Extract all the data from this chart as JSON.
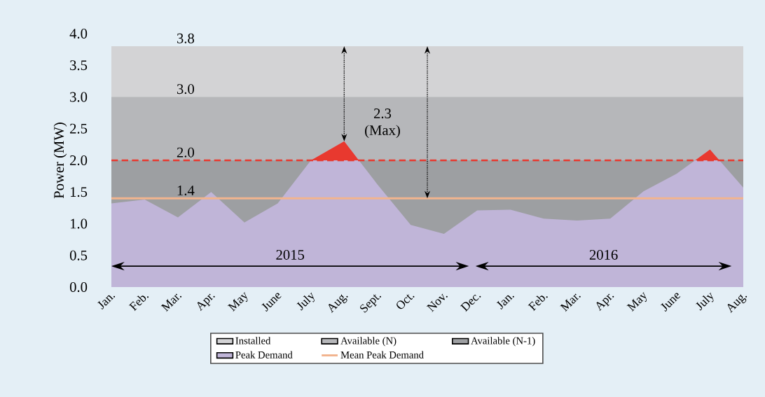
{
  "chart_data": {
    "type": "area",
    "ylabel": "Power (MW)",
    "categories": [
      "Jan.",
      "Feb.",
      "Mar.",
      "Apr.",
      "May",
      "June",
      "July",
      "Aug.",
      "Sept.",
      "Oct.",
      "Nov.",
      "Dec.",
      "Jan.",
      "Feb.",
      "Mar.",
      "Apr.",
      "May",
      "June",
      "July",
      "Aug."
    ],
    "series": [
      {
        "name": "Peak Demand",
        "color": "#c0b5d8",
        "values": [
          1.32,
          1.38,
          1.1,
          1.5,
          1.02,
          1.32,
          2.0,
          2.3,
          1.62,
          0.98,
          0.84,
          1.21,
          1.22,
          1.08,
          1.05,
          1.08,
          1.51,
          1.79,
          2.17,
          1.57
        ]
      },
      {
        "name": "Mean Peak Demand",
        "type": "line",
        "color": "#f2b48e",
        "values": [
          1.4,
          1.4,
          1.4,
          1.4,
          1.4,
          1.4,
          1.4,
          1.4,
          1.4,
          1.4,
          1.4,
          1.4,
          1.4,
          1.4,
          1.4,
          1.4,
          1.4,
          1.4,
          1.4,
          1.4
        ]
      }
    ],
    "bands": [
      {
        "axis": "y",
        "from": 0,
        "to": 3.8,
        "label": "Installed",
        "color": "#d3d3d5"
      },
      {
        "axis": "y",
        "from": 0,
        "to": 3.0,
        "label": "Available (N)",
        "color": "#b6b7ba"
      },
      {
        "axis": "y",
        "from": 0,
        "to": 2.0,
        "label": "Available (N-1)",
        "color": "#9d9fa2"
      }
    ],
    "ref_lines": [
      {
        "axis": "y",
        "value": 2.0,
        "color": "#e8392f",
        "line_style": "dashed"
      }
    ],
    "ylim": [
      0,
      4
    ],
    "yticks": [
      {
        "value": 0,
        "label": "0.0"
      },
      {
        "value": 0.5,
        "label": "0.5"
      },
      {
        "value": 1,
        "label": "1.0"
      },
      {
        "value": 1.5,
        "label": "1.5"
      },
      {
        "value": 2,
        "label": "2.0"
      },
      {
        "value": 2.5,
        "label": "2.5"
      },
      {
        "value": 3,
        "label": "3.0"
      },
      {
        "value": 3.5,
        "label": "3.5"
      },
      {
        "value": 4,
        "label": "4.0"
      }
    ],
    "annotations": [
      "3.8",
      "3.0",
      "2.0",
      "1.4",
      "2.3 (Max)",
      "2015",
      "2016"
    ],
    "legend": "bottom"
  }
}
